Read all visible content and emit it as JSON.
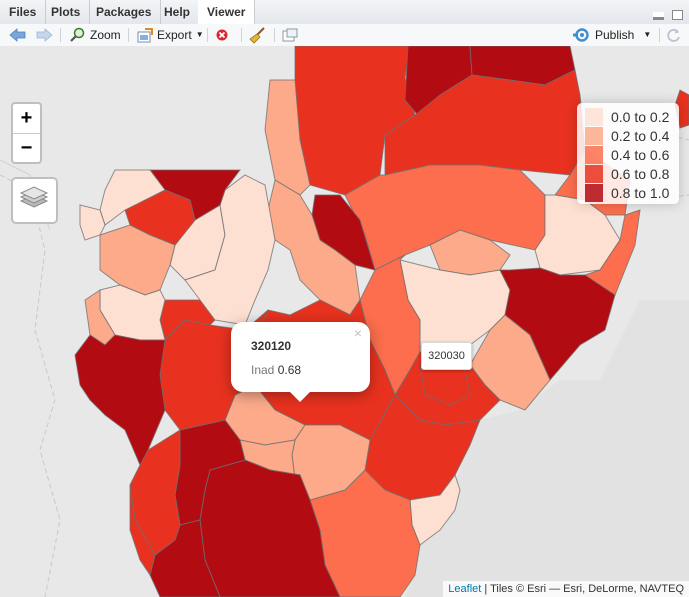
{
  "tabs": [
    {
      "label": "Files"
    },
    {
      "label": "Plots"
    },
    {
      "label": "Packages"
    },
    {
      "label": "Help"
    },
    {
      "label": "Viewer",
      "active": true
    }
  ],
  "toolbar": {
    "zoom_label": "Zoom",
    "export_label": "Export",
    "publish_label": "Publish",
    "icons": [
      "back-arrow-icon",
      "forward-arrow-icon",
      "zoom-magnifier-icon",
      "export-icon",
      "remove-icon",
      "broom-icon",
      "popout-icon",
      "publish-icon",
      "refresh-icon"
    ]
  },
  "map": {
    "zoom_in_label": "+",
    "zoom_out_label": "−",
    "legend": [
      {
        "label": "0.0 to 0.2",
        "color": "#fee0d2"
      },
      {
        "label": "0.2 to 0.4",
        "color": "#fcaa8a"
      },
      {
        "label": "0.4 to 0.6",
        "color": "#fc6e4e"
      },
      {
        "label": "0.6 to 0.8",
        "color": "#e8321f"
      },
      {
        "label": "0.8 to 1.0",
        "color": "#b30b12"
      }
    ],
    "popup": {
      "id": "320120",
      "field_label": "Inad",
      "field_value": "0.68",
      "close": "×"
    },
    "tooltip": "320030",
    "attribution": {
      "link": "Leaflet",
      "text": " | Tiles © Esri — Esri, DeLorme, NAVTEQ"
    }
  }
}
